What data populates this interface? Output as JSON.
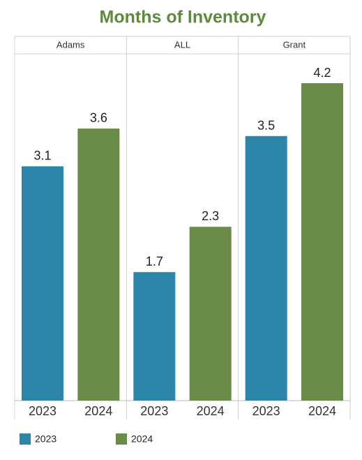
{
  "chart_data": {
    "type": "bar",
    "title": "Months of Inventory",
    "facets": [
      "Adams",
      "ALL",
      "Grant"
    ],
    "series": [
      {
        "name": "2023",
        "color": "#2d86a9",
        "values": [
          3.1,
          1.7,
          3.5
        ]
      },
      {
        "name": "2024",
        "color": "#6a8c48",
        "values": [
          3.6,
          2.3,
          4.2
        ]
      }
    ],
    "legend": "bottom-left"
  }
}
